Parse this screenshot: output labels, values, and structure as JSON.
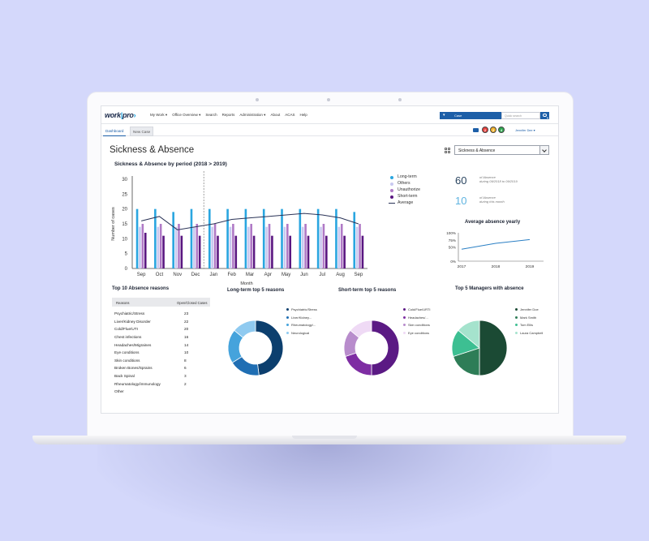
{
  "app": {
    "logo": "work",
    "logo_suffix": "pro"
  },
  "nav": {
    "items": [
      "My Work",
      "Office Overview",
      "Search",
      "Reports",
      "Administration",
      "About",
      "ACAS",
      "Help"
    ],
    "case_select": "Case",
    "quick_search_placeholder": "Quick search",
    "user_name": "Jennifer Dee"
  },
  "tabs": [
    "Dashboard",
    "New Case"
  ],
  "badges": [
    {
      "value": "2",
      "color": "#e8423f"
    },
    {
      "value": "2",
      "color": "#f2b32a"
    },
    {
      "value": "4",
      "color": "#2fa84f"
    }
  ],
  "page": {
    "title": "Sickness & Absence",
    "view_select": "Sickness & Absence"
  },
  "period_chart": {
    "title": "Sickness & Absence by period (2018 > 2019)",
    "legend": [
      "Long-term",
      "Others",
      "Unauthorize",
      "Short-term",
      "Average"
    ]
  },
  "kpis": [
    {
      "value": "60",
      "label1": "of Absence",
      "label2": "during 09/2018 to 09/2019"
    },
    {
      "value": "10",
      "label1": "of Absence",
      "label2": "during this month"
    }
  ],
  "yearly_chart": {
    "title": "Average absence yearly"
  },
  "top10": {
    "title": "Top 10 Absence reasons",
    "headers": [
      "Reasons",
      "Open/Closed Cases"
    ],
    "rows": [
      {
        "reason": "Psychiatric/Stress",
        "count": "23"
      },
      {
        "reason": "Liver/Kidney Disorder",
        "count": "22"
      },
      {
        "reason": "Cold/Flue/UTI",
        "count": "20"
      },
      {
        "reason": "Chest infections",
        "count": "16"
      },
      {
        "reason": "Headaches/Migraines",
        "count": "14"
      },
      {
        "reason": "Eye conditions",
        "count": "10"
      },
      {
        "reason": "Skin conditions",
        "count": "8"
      },
      {
        "reason": "Broken Bones/Sprains",
        "count": "6"
      },
      {
        "reason": "Back Spinal",
        "count": "3"
      },
      {
        "reason": "Rheumatology/immunology",
        "count": "2"
      },
      {
        "reason": "Other",
        "count": ""
      }
    ]
  },
  "donuts": [
    {
      "title": "Long-term top 5 reasons",
      "legend": [
        "Psychiatric/Stress",
        "Liver/Kidney...",
        "Rheumatology/...",
        "Neurological"
      ]
    },
    {
      "title": "Short-term top 5 reasons",
      "legend": [
        "Cold/Flue/URTI",
        "Headaches/...",
        "Skin conditions",
        "Eye conditions"
      ]
    },
    {
      "title": "Top 5 Managers with absence",
      "legend": [
        "Jennifer Doe",
        "Mark Smith",
        "Tom Ellis",
        "Laura Campbell"
      ]
    }
  ],
  "chart_data": [
    {
      "type": "bar",
      "title": "Sickness & Absence by period (2018 > 2019)",
      "xlabel": "Month",
      "ylabel": "Number of cases",
      "ylim": [
        0,
        30
      ],
      "yticks": [
        "0",
        "5",
        "10",
        "15",
        "20",
        "25",
        "30"
      ],
      "categories": [
        "Sep",
        "Oct",
        "Nov",
        "Dec",
        "Jan",
        "Feb",
        "Mar",
        "Apr",
        "May",
        "Jun",
        "Jul",
        "Aug",
        "Sep"
      ],
      "series": [
        {
          "name": "Long-term",
          "color": "#2aa6e0",
          "values": [
            20,
            20,
            19,
            20,
            20,
            20,
            20,
            20,
            20,
            20,
            20,
            20,
            19
          ]
        },
        {
          "name": "Others",
          "color": "#c9c9f0",
          "values": [
            14,
            14,
            14,
            14,
            14,
            14,
            14,
            14,
            14,
            14,
            14,
            14,
            14
          ]
        },
        {
          "name": "Unauthorize",
          "color": "#b07ac6",
          "values": [
            15,
            15,
            15,
            15,
            15,
            15,
            15,
            15,
            15,
            15,
            15,
            15,
            15
          ]
        },
        {
          "name": "Short-term",
          "color": "#5a1781",
          "values": [
            12,
            11,
            11,
            11,
            11,
            11,
            11,
            11,
            11,
            11,
            11,
            11,
            11
          ]
        },
        {
          "name": "Average",
          "color": "#2a3357",
          "type": "line",
          "values": [
            16,
            17.5,
            13,
            14,
            15,
            16.5,
            17,
            17.5,
            18,
            18.5,
            18,
            17,
            15
          ]
        }
      ],
      "divider_after": "Dec",
      "legend_position": "right"
    },
    {
      "type": "line",
      "title": "Average absence yearly",
      "categories": [
        "2017",
        "2018",
        "2019"
      ],
      "ylim": [
        0,
        100
      ],
      "yticks": [
        "0%",
        "50%",
        "75%",
        "100%"
      ],
      "series": [
        {
          "color": "#2a7fc4",
          "values": [
            42,
            63,
            76
          ]
        }
      ]
    },
    {
      "type": "pie",
      "title": "Long-term top 5 reasons",
      "donut": true,
      "labels": [
        "Psychiatric/Stress",
        "Liver/Kidney...",
        "Rheumatology/...",
        "Neurological"
      ],
      "colors": [
        "#0c3f6e",
        "#1f6eb3",
        "#45a3dc",
        "#8fcaf0"
      ],
      "values": [
        48,
        18,
        20,
        14
      ]
    },
    {
      "type": "pie",
      "title": "Short-term top 5 reasons",
      "donut": true,
      "labels": [
        "Cold/Flue/URTI",
        "Headaches/...",
        "Skin conditions",
        "Eye conditions"
      ],
      "colors": [
        "#5b1a84",
        "#7e2da3",
        "#b88ccc",
        "#efdaf5"
      ],
      "values": [
        50,
        20,
        16,
        14
      ]
    },
    {
      "type": "pie",
      "title": "Top 5 Managers with absence",
      "donut": false,
      "labels": [
        "Jennifer Doe",
        "Mark Smith",
        "Tom Ellis",
        "Laura Campbell"
      ],
      "colors": [
        "#1b4a34",
        "#2e7d57",
        "#3dbf92",
        "#a5e3cd"
      ],
      "values": [
        50,
        20,
        16,
        14
      ]
    }
  ]
}
